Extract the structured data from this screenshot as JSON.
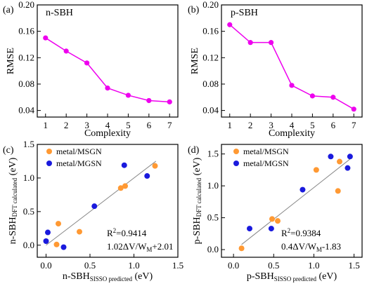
{
  "chart_data": [
    {
      "type": "line",
      "panel_label": "(a)",
      "title": "n-SBH",
      "xlabel": "Complexity",
      "ylabel": "RMSE",
      "xlim": [
        0.6,
        7.4
      ],
      "ylim": [
        0.03,
        0.2
      ],
      "xticks": [
        1,
        2,
        3,
        4,
        5,
        6,
        7
      ],
      "yticks": [
        0.04,
        0.08,
        0.12,
        0.16,
        0.2
      ],
      "ytick_labels": [
        "0.04",
        "0.08",
        "0.12",
        "0.16",
        "0.20"
      ],
      "color": "#ee00ee",
      "x": [
        1,
        2,
        3,
        4,
        5,
        6,
        7
      ],
      "values": [
        0.15,
        0.13,
        0.112,
        0.074,
        0.063,
        0.055,
        0.053
      ]
    },
    {
      "type": "line",
      "panel_label": "(b)",
      "title": "p-SBH",
      "xlabel": "Complexity",
      "ylabel": "RMSE",
      "xlim": [
        0.6,
        7.4
      ],
      "ylim": [
        0.03,
        0.2
      ],
      "xticks": [
        1,
        2,
        3,
        4,
        5,
        6,
        7
      ],
      "yticks": [
        0.04,
        0.08,
        0.12,
        0.16,
        0.2
      ],
      "ytick_labels": [
        "0.04",
        "0.08",
        "0.12",
        "0.16",
        "0.20"
      ],
      "color": "#ee00ee",
      "x": [
        1,
        2,
        3,
        4,
        5,
        6,
        7
      ],
      "values": [
        0.17,
        0.143,
        0.143,
        0.078,
        0.062,
        0.06,
        0.042
      ]
    },
    {
      "type": "scatter",
      "panel_label": "(c)",
      "xlabel_main": "n-SBH",
      "xlabel_sub": "SISSO predicted",
      "xlabel_unit": " (eV)",
      "ylabel_main": "n-SBH",
      "ylabel_sub": "DFT calculated",
      "ylabel_unit": " (eV)",
      "xlim": [
        -0.1,
        1.5
      ],
      "ylim": [
        -0.18,
        1.5
      ],
      "xticks": [
        0.0,
        0.5,
        1.0,
        1.5
      ],
      "yticks": [
        0.0,
        0.5,
        1.0,
        1.5
      ],
      "legend_position": "top-left",
      "annotation_r2_base": "R",
      "annotation_r2_sup": "2",
      "annotation_r2_rest": "=0.9414",
      "annotation_formula": "1.02ΔV/W",
      "annotation_formula_sub": "M",
      "annotation_formula_rest": "+2.01",
      "fit_line": [
        [
          0.0,
          0.0
        ],
        [
          1.25,
          1.25
        ]
      ],
      "series": [
        {
          "name": "metal/MSGN",
          "color": "#ff9933",
          "x": [
            0.12,
            0.14,
            0.38,
            0.85,
            0.9,
            1.24
          ],
          "y": [
            0.01,
            0.32,
            0.2,
            0.85,
            0.88,
            1.18
          ]
        },
        {
          "name": "metal/MGSN",
          "color": "#1a1add",
          "x": [
            0.0,
            0.02,
            0.2,
            0.55,
            0.89,
            1.15
          ],
          "y": [
            0.06,
            0.19,
            -0.03,
            0.58,
            1.19,
            1.03
          ]
        }
      ]
    },
    {
      "type": "scatter",
      "panel_label": "(d)",
      "xlabel_main": "p-SBH",
      "xlabel_sub": "SISSO predicted",
      "xlabel_unit": " (eV)",
      "ylabel_main": "p-SBH",
      "ylabel_sub": "DFT calculated",
      "ylabel_unit": " (eV)",
      "xlim": [
        -0.15,
        1.6
      ],
      "ylim": [
        -0.12,
        1.65
      ],
      "xticks": [
        0.0,
        0.5,
        1.0,
        1.5
      ],
      "yticks": [
        0.0,
        0.5,
        1.0,
        1.5
      ],
      "legend_position": "top-left",
      "annotation_r2_base": "R",
      "annotation_r2_sup": "2",
      "annotation_r2_rest": "=0.9384",
      "annotation_formula": "0.4ΔV/W",
      "annotation_formula_sub": "M",
      "annotation_formula_rest": "-1.83",
      "fit_line": [
        [
          0.1,
          0.08
        ],
        [
          1.45,
          1.42
        ]
      ],
      "series": [
        {
          "name": "metal/MSGN",
          "color": "#ff9933",
          "x": [
            0.1,
            0.48,
            0.55,
            1.03,
            1.3,
            1.32
          ],
          "y": [
            0.02,
            0.48,
            0.45,
            1.25,
            0.92,
            1.38
          ]
        },
        {
          "name": "metal/MGSN",
          "color": "#1a1add",
          "x": [
            0.2,
            0.47,
            0.86,
            1.21,
            1.42,
            1.45
          ],
          "y": [
            0.33,
            0.33,
            0.94,
            1.46,
            1.28,
            1.46
          ]
        }
      ]
    }
  ]
}
